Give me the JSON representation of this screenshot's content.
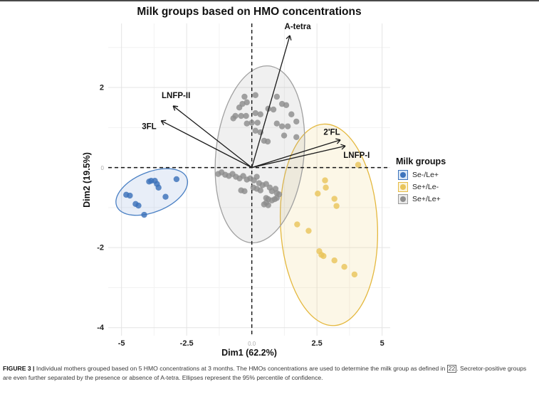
{
  "figure_caption": {
    "label": "FIGURE 3 |",
    "before_ref": " Individual mothers grouped based on 5 HMO concentrations at 3 months. The HMOs concentrations are used to determine the milk group as defined in ",
    "ref": "22",
    "after_ref": ". Secretor-positive groups are even further separated by the presence or absence of A-tetra. Ellipses represent the 95% percentile of confidence."
  },
  "chart_data": {
    "type": "scatter",
    "title": "Milk groups based on HMO concentrations",
    "xlabel": "Dim1 (62.2%)",
    "ylabel": "Dim2 (19.5%)",
    "xlim": [
      -5.51,
      5.31
    ],
    "ylim": [
      -4.2,
      3.6
    ],
    "x_major_ticks": [
      -5,
      -2.5,
      0,
      2.5,
      5
    ],
    "x_tick_labels": [
      "-5",
      "-2.5",
      "0.0",
      "2.5",
      "5"
    ],
    "y_major_ticks": [
      2,
      0,
      -2,
      -4
    ],
    "y_tick_labels": [
      "2",
      "0",
      "-2",
      "-4"
    ],
    "x_minor_ticks": [
      -3.75,
      -1.25,
      1.25,
      3.75
    ],
    "y_minor_ticks": [
      3,
      1,
      -1,
      -3
    ],
    "grid": true,
    "zero_lines": "dashed",
    "legend": {
      "title": "Milk groups",
      "position": "right",
      "entries": [
        {
          "label": "Se-/Le+",
          "color": "#3e74bc",
          "key_fill": "#d9e6f5",
          "dot": "#3e74bc"
        },
        {
          "label": "Se+/Le-",
          "color": "#e7bc45",
          "key_fill": "#faf3da",
          "dot": "#e8c45a"
        },
        {
          "label": "Se+/Le+",
          "color": "#9b9b9b",
          "key_fill": "#e9e9e9",
          "dot": "#8f8f8f"
        }
      ]
    },
    "series": [
      {
        "name": "Se-/Le+",
        "color": "#3c72ba",
        "ellipse": {
          "cx": -3.84,
          "cy": -0.61,
          "rx": 1.45,
          "ry": 0.5,
          "rot": -22,
          "stroke": "#4a80c4",
          "fill": "rgba(98,144,205,0.15)"
        },
        "points": [
          [
            -4.82,
            -0.68
          ],
          [
            -4.68,
            -0.7
          ],
          [
            -4.46,
            -0.91
          ],
          [
            -4.35,
            -0.95
          ],
          [
            -4.13,
            -1.18
          ],
          [
            -3.94,
            -0.35
          ],
          [
            -3.86,
            -0.33
          ],
          [
            -3.72,
            -0.33
          ],
          [
            -3.64,
            -0.41
          ],
          [
            -3.58,
            -0.5
          ],
          [
            -3.31,
            -0.73
          ],
          [
            -2.89,
            -0.29
          ]
        ]
      },
      {
        "name": "Se+/Le-",
        "color": "#e9c45c",
        "ellipse": {
          "cx": 2.96,
          "cy": -1.43,
          "rx": 1.86,
          "ry": 2.52,
          "rot": -3,
          "stroke": "#e4b83e",
          "fill": "rgba(240,212,120,0.18)"
        },
        "points": [
          [
            4.08,
            0.07
          ],
          [
            2.81,
            -0.32
          ],
          [
            2.84,
            -0.5
          ],
          [
            2.53,
            -0.65
          ],
          [
            3.17,
            -0.78
          ],
          [
            3.25,
            -0.96
          ],
          [
            1.74,
            -1.42
          ],
          [
            2.18,
            -1.58
          ],
          [
            2.59,
            -2.09
          ],
          [
            2.67,
            -2.18
          ],
          [
            2.75,
            -2.21
          ],
          [
            3.17,
            -2.32
          ],
          [
            3.55,
            -2.48
          ],
          [
            3.94,
            -2.67
          ]
        ]
      },
      {
        "name": "Se+/Le+",
        "color": "#8c8c8c",
        "ellipse": {
          "cx": 0.31,
          "cy": 0.33,
          "rx": 1.69,
          "ry": 2.22,
          "rot": 6,
          "stroke": "#a0a0a0",
          "fill": "rgba(160,160,160,0.16)"
        },
        "points": [
          [
            -0.28,
            1.77
          ],
          [
            0.14,
            1.81
          ],
          [
            0.96,
            1.77
          ],
          [
            -0.36,
            1.59
          ],
          [
            -0.19,
            1.63
          ],
          [
            1.16,
            1.59
          ],
          [
            1.32,
            1.56
          ],
          [
            0.63,
            1.47
          ],
          [
            0.83,
            1.45
          ],
          [
            -0.48,
            1.5
          ],
          [
            -0.63,
            1.29
          ],
          [
            -0.41,
            1.29
          ],
          [
            -0.22,
            1.29
          ],
          [
            0.14,
            1.36
          ],
          [
            0.33,
            1.33
          ],
          [
            1.52,
            1.33
          ],
          [
            1.71,
            1.15
          ],
          [
            -0.19,
            1.1
          ],
          [
            0.0,
            1.12
          ],
          [
            0.22,
            1.12
          ],
          [
            0.96,
            1.1
          ],
          [
            1.16,
            1.03
          ],
          [
            1.38,
            1.03
          ],
          [
            0.14,
            0.92
          ],
          [
            0.33,
            0.88
          ],
          [
            1.24,
            0.8
          ],
          [
            1.71,
            0.76
          ],
          [
            0.47,
            0.67
          ],
          [
            0.61,
            0.65
          ],
          [
            -0.71,
            1.23
          ],
          [
            -1.29,
            -0.16
          ],
          [
            -1.16,
            -0.12
          ],
          [
            -1.02,
            -0.18
          ],
          [
            -0.88,
            -0.21
          ],
          [
            -0.74,
            -0.16
          ],
          [
            -0.61,
            -0.23
          ],
          [
            -0.47,
            -0.27
          ],
          [
            -0.33,
            -0.21
          ],
          [
            -0.19,
            -0.3
          ],
          [
            -0.06,
            -0.27
          ],
          [
            0.08,
            -0.32
          ],
          [
            0.19,
            -0.23
          ],
          [
            0.28,
            -0.39
          ],
          [
            0.41,
            -0.44
          ],
          [
            0.55,
            -0.41
          ],
          [
            -0.41,
            -0.57
          ],
          [
            -0.28,
            -0.59
          ],
          [
            0.06,
            -0.5
          ],
          [
            0.19,
            -0.53
          ],
          [
            0.33,
            -0.57
          ],
          [
            0.69,
            -0.5
          ],
          [
            0.77,
            -0.59
          ],
          [
            0.91,
            -0.53
          ],
          [
            0.96,
            -0.64
          ],
          [
            1.05,
            -0.67
          ],
          [
            0.55,
            -0.76
          ],
          [
            0.63,
            -0.79
          ],
          [
            0.77,
            -0.82
          ],
          [
            0.88,
            -0.79
          ],
          [
            0.96,
            -0.76
          ],
          [
            0.47,
            -0.92
          ],
          [
            0.55,
            -0.88
          ],
          [
            0.63,
            -0.94
          ]
        ]
      }
    ],
    "loadings": [
      {
        "label": "A-tetra",
        "tip": [
          1.46,
          3.3
        ],
        "label_pos": [
          1.76,
          3.52
        ]
      },
      {
        "label": "LNFP-II",
        "tip": [
          -3.02,
          1.54
        ],
        "label_pos": [
          -2.91,
          1.8
        ]
      },
      {
        "label": "3FL",
        "tip": [
          -3.48,
          1.17
        ],
        "label_pos": [
          -3.94,
          1.02
        ]
      },
      {
        "label": "2'FL",
        "tip": [
          3.4,
          0.69
        ],
        "label_pos": [
          3.07,
          0.88
        ]
      },
      {
        "label": "LNFP-I",
        "tip": [
          3.59,
          0.54
        ],
        "label_pos": [
          4.02,
          0.3
        ]
      }
    ]
  }
}
